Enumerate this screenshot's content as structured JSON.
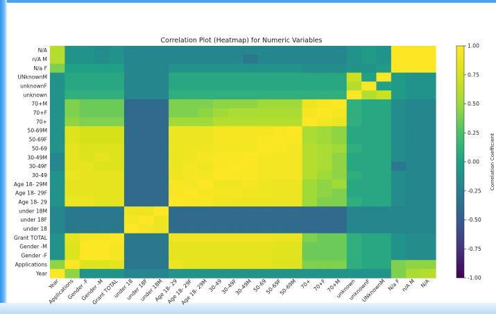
{
  "chart_data": {
    "type": "heatmap",
    "title": "Correlation Plot (Heatmap) for Numeric Variables",
    "x_labels": [
      "Year",
      "Applications",
      "Gender -F",
      "Gender -M",
      "Grant TOTAL",
      "under 18",
      "under 18F",
      "under 18M",
      "Age 18- 29",
      "Age 18- 29F",
      "Age 18- 29M",
      "30-49",
      "30-49F",
      "30-49M",
      "50-69",
      "50-69F",
      "50-69M",
      "70+",
      "70+F",
      "70+M",
      "unknown",
      "unknownF",
      "UNknownM",
      "N/a F",
      "n/A M",
      "N/A"
    ],
    "y_labels": [
      "N/A",
      "n/A M",
      "N/a F",
      "UNknownM",
      "unknownF",
      "unknown",
      "70+M",
      "70+F",
      "70+",
      "50-69M",
      "50-69F",
      "50-69",
      "30-49M",
      "30-49F",
      "30-49",
      "Age 18- 29M",
      "Age 18- 29F",
      "Age 18- 29",
      "under 18M",
      "under 18F",
      "under 18",
      "Grant TOTAL",
      "Gender -M",
      "Gender -F",
      "Applications",
      "Year"
    ],
    "colorbar": {
      "label": "Correlation Coefficient",
      "range": [
        -1.0,
        1.0
      ],
      "ticks": [
        "1.00",
        "0.75",
        "0.50",
        "0.25",
        "0.00",
        "-0.25",
        "-0.50",
        "-0.75",
        "-1.00"
      ]
    },
    "colormap": "viridis",
    "values": [
      [
        0.6,
        -0.1,
        -0.1,
        -0.15,
        -0.1,
        -0.2,
        -0.2,
        -0.2,
        -0.2,
        -0.2,
        -0.2,
        -0.2,
        -0.2,
        -0.2,
        -0.2,
        -0.2,
        -0.2,
        -0.2,
        -0.2,
        -0.2,
        -0.1,
        -0.05,
        -0.1,
        1.0,
        1.0,
        1.0
      ],
      [
        0.6,
        -0.1,
        -0.1,
        -0.15,
        -0.1,
        -0.2,
        -0.2,
        -0.2,
        -0.2,
        -0.2,
        -0.2,
        -0.2,
        -0.2,
        -0.3,
        -0.2,
        -0.2,
        -0.2,
        -0.2,
        -0.2,
        -0.2,
        -0.1,
        -0.05,
        -0.1,
        1.0,
        1.0,
        1.0
      ],
      [
        0.4,
        0.0,
        0.0,
        0.0,
        0.0,
        -0.2,
        -0.2,
        -0.2,
        -0.1,
        -0.1,
        -0.1,
        -0.1,
        -0.1,
        -0.1,
        -0.1,
        -0.1,
        -0.1,
        -0.15,
        -0.15,
        -0.15,
        -0.1,
        -0.1,
        -0.05,
        1.0,
        1.0,
        1.0
      ],
      [
        -0.1,
        0.05,
        0.05,
        0.05,
        0.05,
        -0.2,
        -0.2,
        -0.2,
        0.05,
        0.05,
        0.05,
        0.05,
        0.05,
        0.05,
        0.05,
        0.05,
        0.05,
        0.05,
        0.05,
        0.05,
        0.7,
        0.0,
        1.0,
        -0.05,
        -0.1,
        -0.1
      ],
      [
        -0.1,
        0.05,
        0.05,
        0.05,
        0.05,
        -0.2,
        -0.2,
        -0.2,
        0.05,
        0.05,
        0.05,
        0.05,
        0.05,
        0.05,
        0.05,
        0.05,
        0.05,
        0.05,
        0.05,
        0.05,
        0.6,
        1.0,
        0.0,
        -0.05,
        -0.1,
        -0.1
      ],
      [
        -0.1,
        0.1,
        0.1,
        0.1,
        0.1,
        -0.2,
        -0.2,
        -0.2,
        0.1,
        0.1,
        0.1,
        0.1,
        0.1,
        0.1,
        0.1,
        0.1,
        0.1,
        0.1,
        0.1,
        0.1,
        1.0,
        0.6,
        0.7,
        -0.05,
        -0.1,
        -0.1
      ],
      [
        -0.1,
        0.4,
        0.35,
        0.35,
        0.35,
        -0.4,
        -0.4,
        -0.4,
        0.4,
        0.4,
        0.4,
        0.45,
        0.45,
        0.45,
        0.5,
        0.5,
        0.5,
        0.9,
        0.95,
        1.0,
        0.1,
        0.05,
        0.05,
        -0.15,
        -0.2,
        -0.2
      ],
      [
        -0.1,
        0.4,
        0.35,
        0.35,
        0.35,
        -0.4,
        -0.4,
        -0.4,
        0.4,
        0.4,
        0.45,
        0.5,
        0.55,
        0.55,
        0.55,
        0.55,
        0.55,
        0.95,
        1.0,
        0.95,
        0.1,
        0.05,
        0.05,
        -0.15,
        -0.2,
        -0.2
      ],
      [
        -0.1,
        0.45,
        0.4,
        0.4,
        0.4,
        -0.4,
        -0.4,
        -0.4,
        0.5,
        0.5,
        0.5,
        0.6,
        0.6,
        0.6,
        0.6,
        0.6,
        0.6,
        1.0,
        0.95,
        0.9,
        0.1,
        0.05,
        0.05,
        -0.15,
        -0.2,
        -0.2
      ],
      [
        -0.1,
        0.8,
        0.75,
        0.75,
        0.75,
        -0.4,
        -0.4,
        -0.4,
        0.9,
        0.9,
        0.9,
        0.95,
        0.95,
        0.95,
        0.95,
        0.98,
        1.0,
        0.55,
        0.5,
        0.45,
        0.05,
        0.05,
        0.05,
        -0.15,
        -0.2,
        -0.2
      ],
      [
        -0.1,
        0.8,
        0.75,
        0.75,
        0.75,
        -0.4,
        -0.4,
        -0.4,
        0.9,
        0.9,
        0.9,
        0.95,
        0.95,
        0.95,
        0.98,
        1.0,
        0.98,
        0.55,
        0.5,
        0.45,
        0.05,
        0.05,
        0.05,
        -0.15,
        -0.2,
        -0.2
      ],
      [
        -0.1,
        0.85,
        0.8,
        0.8,
        0.8,
        -0.4,
        -0.4,
        -0.4,
        0.9,
        0.92,
        0.92,
        0.95,
        0.95,
        0.95,
        1.0,
        0.98,
        0.95,
        0.6,
        0.55,
        0.5,
        0.1,
        0.05,
        0.05,
        -0.15,
        -0.2,
        -0.2
      ],
      [
        -0.2,
        0.85,
        0.8,
        0.85,
        0.8,
        -0.4,
        -0.4,
        -0.4,
        0.9,
        0.92,
        0.95,
        0.98,
        0.98,
        1.0,
        0.95,
        0.95,
        0.95,
        0.6,
        0.55,
        0.45,
        0.05,
        0.05,
        0.05,
        -0.15,
        -0.2,
        -0.2
      ],
      [
        -0.2,
        0.85,
        0.85,
        0.8,
        0.8,
        -0.4,
        -0.4,
        -0.4,
        0.9,
        0.95,
        0.92,
        0.98,
        1.0,
        0.98,
        0.95,
        0.95,
        0.95,
        0.6,
        0.55,
        0.45,
        0.05,
        0.05,
        0.05,
        -0.3,
        -0.2,
        -0.2
      ],
      [
        -0.1,
        0.9,
        0.85,
        0.85,
        0.85,
        -0.4,
        -0.4,
        -0.4,
        0.92,
        0.95,
        0.95,
        1.0,
        0.98,
        0.98,
        0.95,
        0.95,
        0.95,
        0.6,
        0.5,
        0.45,
        0.1,
        0.05,
        0.05,
        -0.15,
        -0.2,
        -0.2
      ],
      [
        -0.1,
        0.85,
        0.85,
        0.85,
        0.85,
        -0.4,
        -0.4,
        -0.4,
        0.97,
        0.95,
        1.0,
        0.92,
        0.92,
        0.95,
        0.92,
        0.9,
        0.9,
        0.5,
        0.45,
        0.5,
        0.05,
        0.05,
        0.05,
        -0.15,
        -0.2,
        -0.2
      ],
      [
        -0.1,
        0.85,
        0.85,
        0.85,
        0.85,
        -0.4,
        -0.4,
        -0.4,
        0.97,
        1.0,
        0.95,
        0.95,
        0.95,
        0.92,
        0.92,
        0.9,
        0.9,
        0.5,
        0.45,
        0.4,
        0.05,
        0.05,
        0.05,
        -0.15,
        -0.2,
        -0.2
      ],
      [
        -0.1,
        0.9,
        0.9,
        0.85,
        0.85,
        -0.4,
        -0.4,
        -0.4,
        1.0,
        0.97,
        0.97,
        0.92,
        0.9,
        0.9,
        0.9,
        0.9,
        0.9,
        0.5,
        0.4,
        0.4,
        0.1,
        0.05,
        0.05,
        -0.15,
        -0.2,
        -0.2
      ],
      [
        -0.2,
        -0.3,
        -0.3,
        -0.3,
        -0.3,
        0.9,
        0.9,
        1.0,
        -0.4,
        -0.4,
        -0.4,
        -0.4,
        -0.4,
        -0.4,
        -0.4,
        -0.4,
        -0.4,
        -0.4,
        -0.4,
        -0.4,
        -0.2,
        -0.2,
        -0.2,
        -0.2,
        -0.2,
        -0.2
      ],
      [
        -0.2,
        -0.3,
        -0.3,
        -0.3,
        -0.3,
        0.95,
        1.0,
        0.9,
        -0.4,
        -0.4,
        -0.4,
        -0.4,
        -0.4,
        -0.4,
        -0.4,
        -0.4,
        -0.4,
        -0.4,
        -0.4,
        -0.4,
        -0.2,
        -0.2,
        -0.2,
        -0.2,
        -0.2,
        -0.2
      ],
      [
        -0.2,
        -0.3,
        -0.3,
        -0.3,
        -0.3,
        1.0,
        0.95,
        0.9,
        -0.4,
        -0.4,
        -0.4,
        -0.4,
        -0.4,
        -0.4,
        -0.4,
        -0.4,
        -0.4,
        -0.4,
        -0.4,
        -0.4,
        -0.2,
        -0.2,
        -0.2,
        -0.2,
        -0.2,
        -0.2
      ],
      [
        -0.1,
        0.85,
        0.95,
        0.95,
        1.0,
        -0.3,
        -0.3,
        -0.3,
        0.9,
        0.9,
        0.9,
        0.9,
        0.9,
        0.9,
        0.9,
        0.88,
        0.88,
        0.4,
        0.35,
        0.35,
        0.1,
        0.05,
        0.05,
        -0.1,
        -0.15,
        -0.15
      ],
      [
        -0.1,
        0.8,
        1.0,
        1.0,
        0.95,
        -0.3,
        -0.3,
        -0.3,
        0.85,
        0.85,
        0.85,
        0.85,
        0.85,
        0.85,
        0.85,
        0.82,
        0.82,
        0.35,
        0.35,
        0.35,
        0.1,
        0.05,
        0.05,
        -0.1,
        -0.15,
        -0.15
      ],
      [
        -0.1,
        0.8,
        1.0,
        1.0,
        0.95,
        -0.3,
        -0.3,
        -0.3,
        0.85,
        0.85,
        0.85,
        0.85,
        0.85,
        0.85,
        0.85,
        0.82,
        0.82,
        0.35,
        0.35,
        0.35,
        0.1,
        0.05,
        0.05,
        -0.1,
        -0.15,
        -0.15
      ],
      [
        0.45,
        1.0,
        0.8,
        0.8,
        0.85,
        -0.3,
        -0.3,
        -0.3,
        0.9,
        0.85,
        0.85,
        0.85,
        0.85,
        0.85,
        0.85,
        0.8,
        0.8,
        0.4,
        0.4,
        0.4,
        0.1,
        0.05,
        0.05,
        0.4,
        0.45,
        0.45
      ],
      [
        1.0,
        0.45,
        -0.1,
        -0.1,
        -0.1,
        -0.2,
        -0.2,
        -0.2,
        -0.1,
        -0.1,
        -0.1,
        -0.1,
        -0.1,
        -0.1,
        -0.1,
        -0.1,
        -0.1,
        -0.1,
        -0.1,
        -0.1,
        -0.1,
        -0.1,
        -0.1,
        0.4,
        0.55,
        0.6
      ]
    ]
  }
}
